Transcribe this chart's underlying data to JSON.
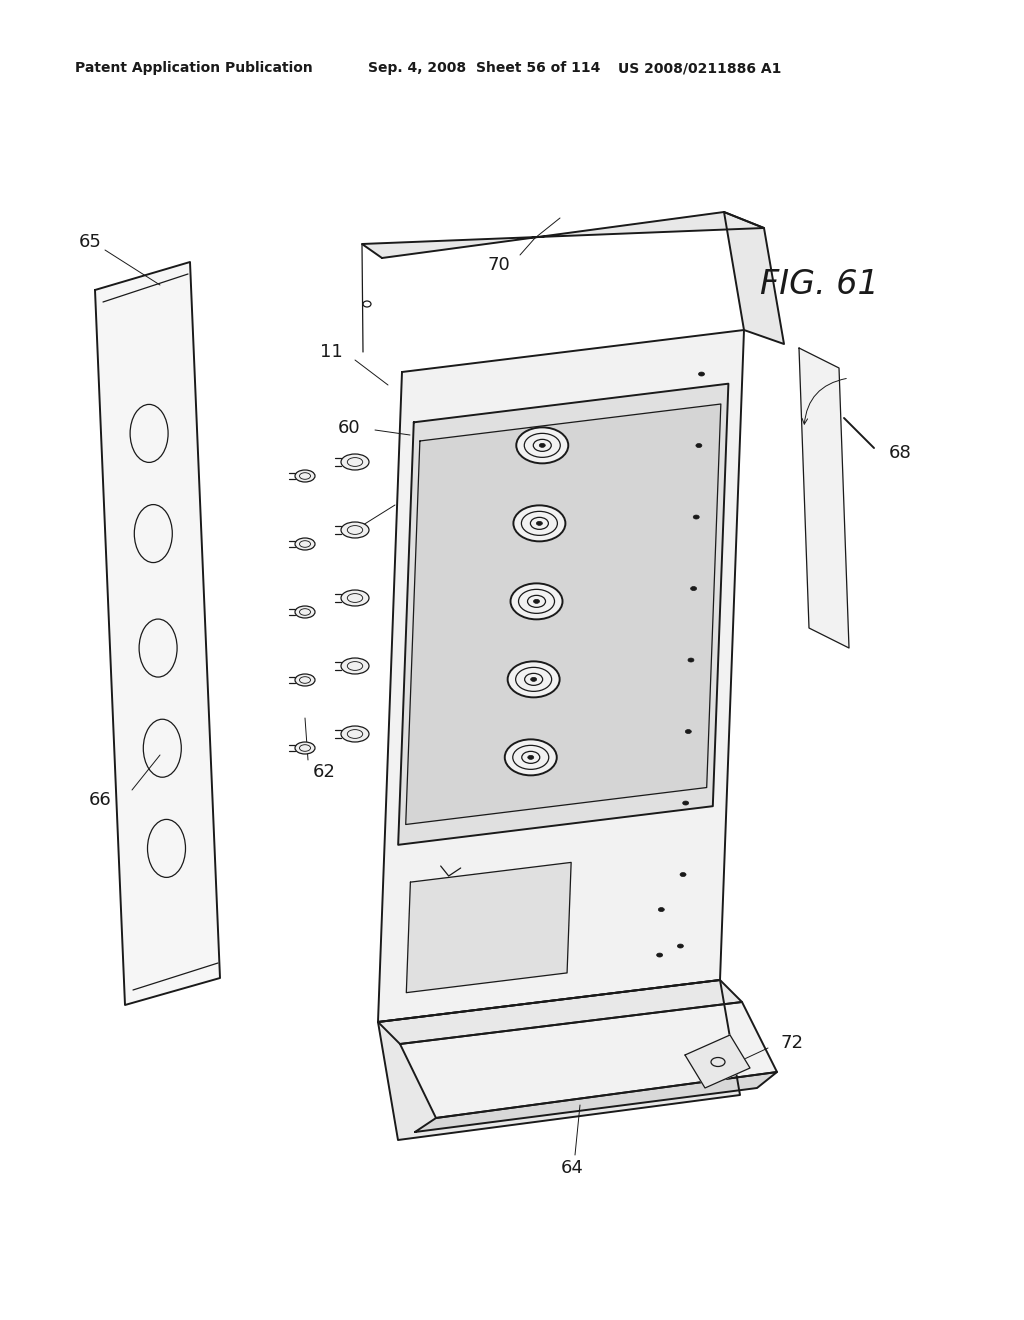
{
  "bg_color": "#ffffff",
  "line_color": "#1a1a1a",
  "fill_light": "#f2f2f2",
  "fill_mid": "#e8e8e8",
  "fill_dark": "#d8d8d8",
  "header_text": "Patent Application Publication",
  "header_date": "Sep. 4, 2008",
  "header_sheet": "Sheet 56 of 114",
  "header_patent": "US 2008/0211886 A1",
  "fig_label": "FIG. 61"
}
